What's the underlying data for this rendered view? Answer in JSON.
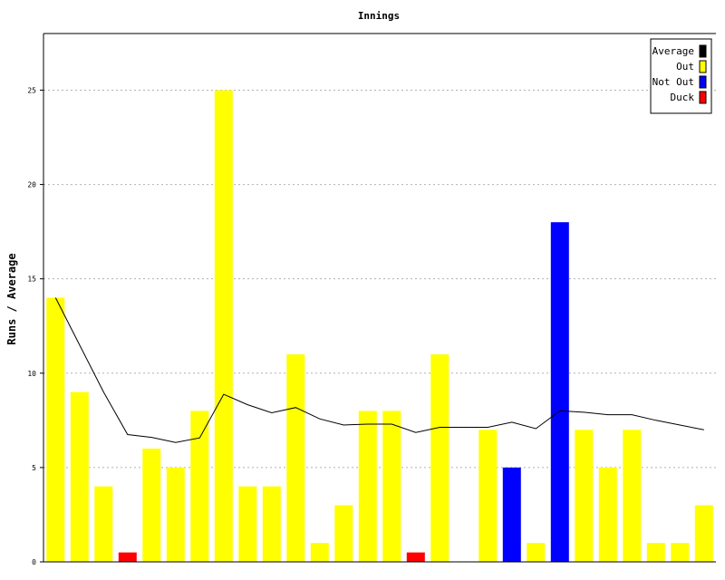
{
  "chart_data": {
    "type": "bar",
    "title": "Innings",
    "xlabel": "",
    "ylabel": "Runs / Average",
    "ylim": [
      0,
      28
    ],
    "yticks": [
      0,
      5,
      10,
      15,
      20,
      25
    ],
    "grid": true,
    "legend_position": "top-right",
    "legend": [
      {
        "label": "Average",
        "color": "#000000"
      },
      {
        "label": "Out",
        "color": "#ffff00"
      },
      {
        "label": "Not Out",
        "color": "#0000ff"
      },
      {
        "label": "Duck",
        "color": "#ff0000"
      }
    ],
    "innings": [
      {
        "runs": 14,
        "status": "Out"
      },
      {
        "runs": 9,
        "status": "Out"
      },
      {
        "runs": 4,
        "status": "Out"
      },
      {
        "runs": 0,
        "status": "Duck"
      },
      {
        "runs": 6,
        "status": "Out"
      },
      {
        "runs": 5,
        "status": "Out"
      },
      {
        "runs": 8,
        "status": "Out"
      },
      {
        "runs": 25,
        "status": "Out"
      },
      {
        "runs": 4,
        "status": "Out"
      },
      {
        "runs": 4,
        "status": "Out"
      },
      {
        "runs": 11,
        "status": "Out"
      },
      {
        "runs": 1,
        "status": "Out"
      },
      {
        "runs": 3,
        "status": "Out"
      },
      {
        "runs": 8,
        "status": "Out"
      },
      {
        "runs": 8,
        "status": "Out"
      },
      {
        "runs": 0,
        "status": "Duck"
      },
      {
        "runs": 11,
        "status": "Out"
      },
      {
        "runs": 0,
        "status": "None"
      },
      {
        "runs": 7,
        "status": "Out"
      },
      {
        "runs": 5,
        "status": "Not Out"
      },
      {
        "runs": 1,
        "status": "Out"
      },
      {
        "runs": 18,
        "status": "Not Out"
      },
      {
        "runs": 7,
        "status": "Out"
      },
      {
        "runs": 5,
        "status": "Out"
      },
      {
        "runs": 7,
        "status": "Out"
      },
      {
        "runs": 1,
        "status": "Out"
      },
      {
        "runs": 1,
        "status": "Out"
      },
      {
        "runs": 3,
        "status": "Out"
      }
    ],
    "average": [
      14,
      11.5,
      9,
      6.75,
      6.6,
      6.33,
      6.57,
      8.88,
      8.33,
      7.9,
      8.18,
      7.58,
      7.25,
      7.3,
      7.3,
      6.86,
      7.13,
      7.13,
      7.13,
      7.4,
      7.06,
      8.0,
      7.93,
      7.8,
      7.8,
      7.5,
      7.25,
      7.0
    ]
  }
}
